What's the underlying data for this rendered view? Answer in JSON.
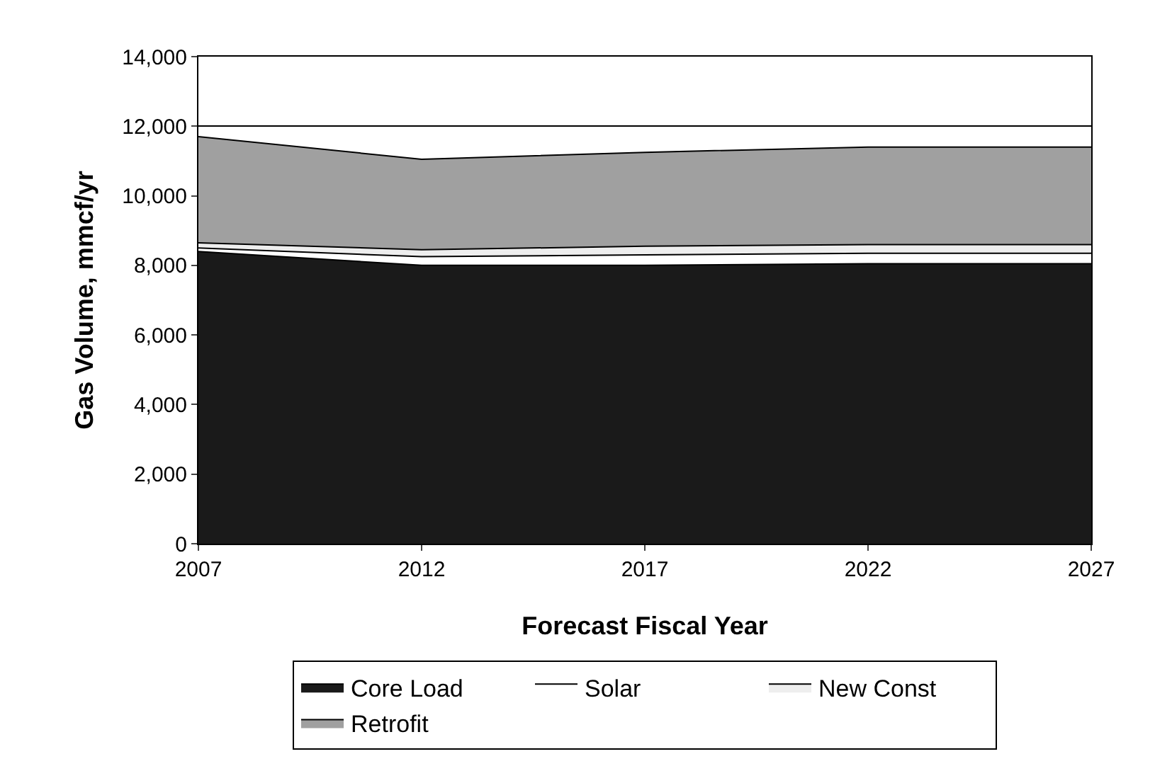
{
  "chart_data": {
    "type": "area",
    "stacked": true,
    "xlabel": "Forecast Fiscal Year",
    "ylabel": "Gas Volume, mmcf/yr",
    "x": [
      2007,
      2012,
      2017,
      2022,
      2027
    ],
    "series": [
      {
        "name": "Core Load",
        "color": "#1a1a1a",
        "values": [
          8400,
          8000,
          8000,
          8050,
          8050
        ]
      },
      {
        "name": "Solar",
        "color": "#ffffff",
        "values": [
          100,
          250,
          300,
          300,
          300
        ]
      },
      {
        "name": "New Const",
        "color": "#eeeeee",
        "values": [
          150,
          200,
          250,
          250,
          250
        ]
      },
      {
        "name": "Retrofit",
        "color": "#a0a0a0",
        "values": [
          3050,
          2600,
          2700,
          2800,
          2800
        ]
      }
    ],
    "xlim": [
      2007,
      2027
    ],
    "xticks": [
      2007,
      2012,
      2017,
      2022,
      2027
    ],
    "ylim": [
      0,
      14000
    ],
    "yticks": [
      {
        "value": 0,
        "label": "0"
      },
      {
        "value": 2000,
        "label": "2,000"
      },
      {
        "value": 4000,
        "label": "4,000"
      },
      {
        "value": 6000,
        "label": "6,000"
      },
      {
        "value": 8000,
        "label": "8,000"
      },
      {
        "value": 10000,
        "label": "10,000"
      },
      {
        "value": 12000,
        "label": "12,000"
      },
      {
        "value": 14000,
        "label": "14,000"
      }
    ],
    "grid": "y",
    "legend": "bottom"
  }
}
